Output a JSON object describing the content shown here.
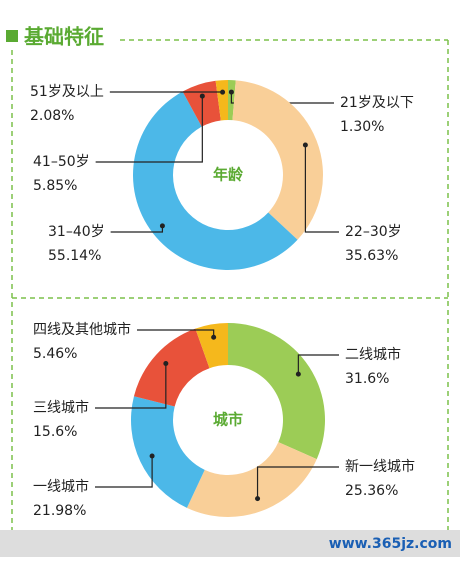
{
  "header": {
    "title": "基础特征"
  },
  "chart_data": [
    {
      "type": "donut",
      "center_label": "年龄",
      "categories": [
        "21岁及以下",
        "22–30岁",
        "31–40岁",
        "41–50岁",
        "51岁及以上"
      ],
      "values": [
        1.3,
        35.63,
        55.14,
        5.85,
        2.08
      ],
      "value_labels": [
        "1.30%",
        "35.63%",
        "55.14%",
        "5.85%",
        "2.08%"
      ],
      "colors": [
        "#9ccc56",
        "#f9cf98",
        "#4cb8e8",
        "#e8523a",
        "#f5b81c"
      ]
    },
    {
      "type": "donut",
      "center_label": "城市",
      "categories": [
        "二线城市",
        "新一线城市",
        "一线城市",
        "三线城市",
        "四线及其他城市"
      ],
      "values": [
        31.6,
        25.36,
        21.98,
        15.6,
        5.46
      ],
      "value_labels": [
        "31.6%",
        "25.36%",
        "21.98%",
        "15.6%",
        "5.46%"
      ],
      "colors": [
        "#9ccc56",
        "#f9cf98",
        "#4cb8e8",
        "#e8523a",
        "#f5b81c"
      ]
    }
  ],
  "footer": {
    "watermark": "www.365jz.com"
  }
}
